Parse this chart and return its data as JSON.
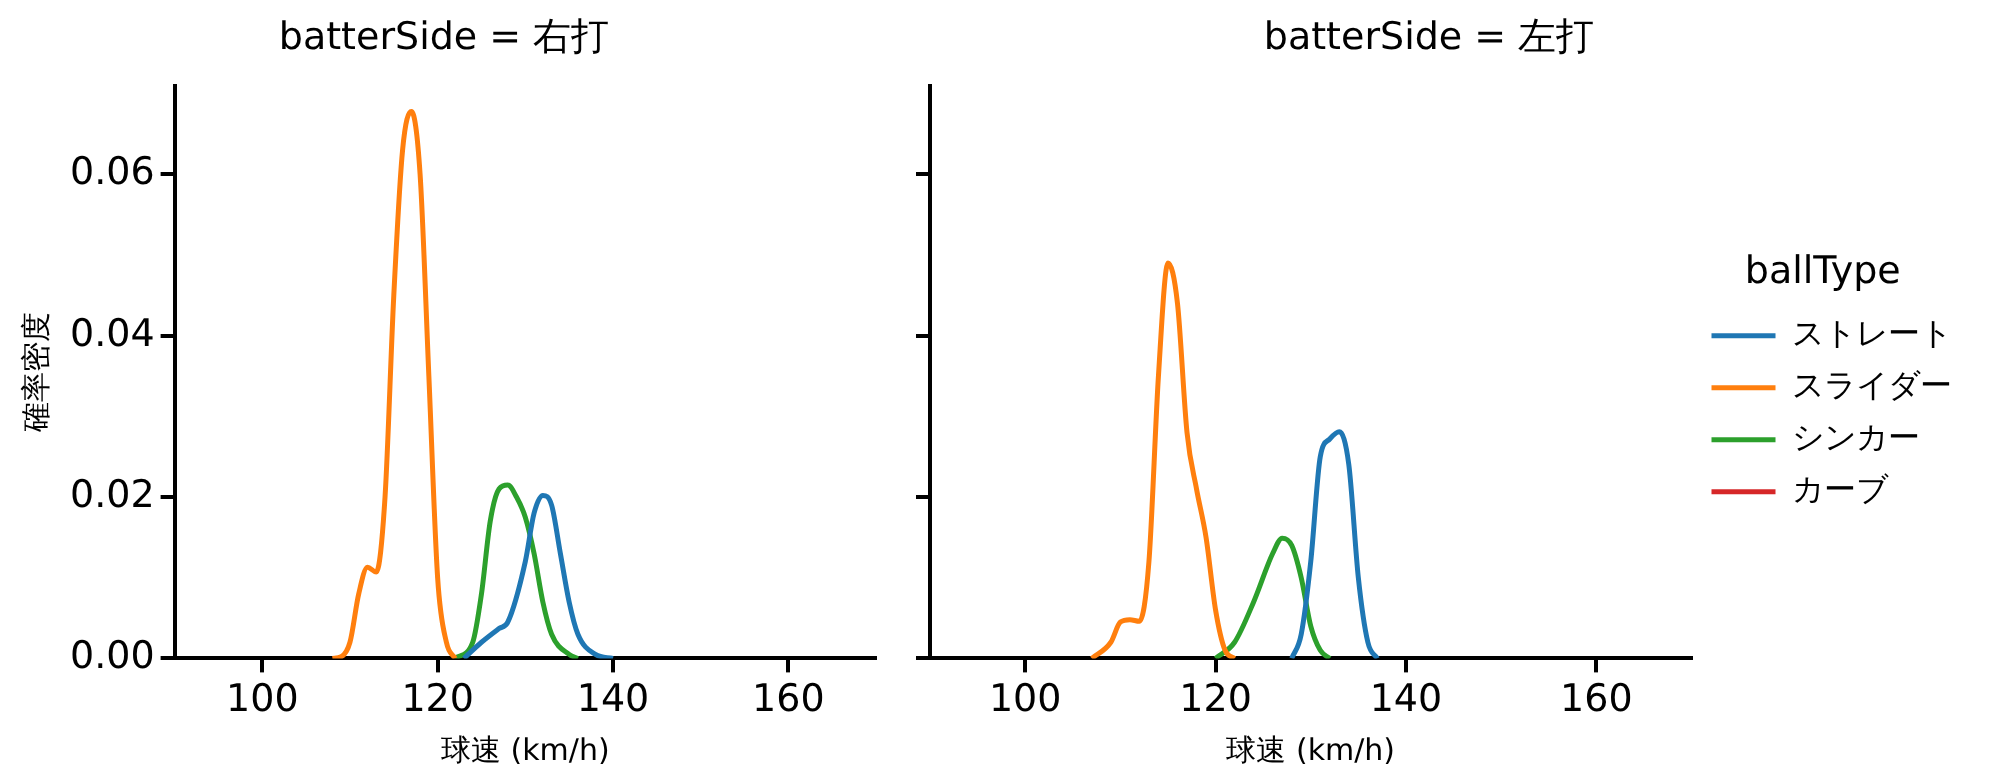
{
  "chart_data": [
    {
      "type": "line",
      "title": "batterSide = 右打",
      "xlabel": "球速 (km/h)",
      "ylabel": "確率密度",
      "xlim": [
        90,
        170
      ],
      "xticks": [
        100,
        120,
        140,
        160
      ],
      "ylim": [
        0,
        0.071
      ],
      "yticks": [
        {
          "value": 0,
          "label": "0.00"
        },
        {
          "value": 0.02,
          "label": "0.02"
        },
        {
          "value": 0.04,
          "label": "0.04"
        },
        {
          "value": 0.06,
          "label": "0.06"
        }
      ],
      "grid": false,
      "legend": false,
      "marker": "none",
      "series": [
        {
          "color": "#1f77b4",
          "x": [
            123,
            125,
            127,
            128,
            130,
            131,
            132,
            133,
            134,
            135,
            136,
            138,
            140
          ],
          "values": [
            0,
            0.002,
            0.0037,
            0.0045,
            0.012,
            0.018,
            0.0202,
            0.019,
            0.013,
            0.007,
            0.003,
            0.0005,
            0
          ]
        },
        {
          "color": "#ff7f0e",
          "x": [
            108,
            109,
            110,
            111,
            112,
            113,
            114,
            115,
            116,
            117,
            118,
            119,
            120,
            121,
            122
          ],
          "values": [
            0,
            0.0002,
            0.002,
            0.008,
            0.0113,
            0.0107,
            0.02,
            0.045,
            0.063,
            0.0678,
            0.06,
            0.035,
            0.01,
            0.002,
            0
          ]
        },
        {
          "color": "#2ca02c",
          "x": [
            122,
            124,
            125,
            126,
            127,
            128,
            129,
            130,
            131,
            132,
            133,
            135,
            136
          ],
          "values": [
            0,
            0.002,
            0.008,
            0.017,
            0.021,
            0.0215,
            0.02,
            0.0175,
            0.013,
            0.007,
            0.003,
            0.0005,
            0
          ]
        }
      ]
    },
    {
      "type": "line",
      "title": "batterSide = 左打",
      "xlabel": "球速 (km/h)",
      "xlim": [
        90,
        170
      ],
      "xticks": [
        100,
        120,
        140,
        160
      ],
      "ylim": [
        0,
        0.071
      ],
      "yticks": [
        {
          "value": 0,
          "label": null
        },
        {
          "value": 0.02,
          "label": null
        },
        {
          "value": 0.04,
          "label": null
        },
        {
          "value": 0.06,
          "label": null
        }
      ],
      "tick_labels": "x",
      "grid": false,
      "legend": "right",
      "legend_title": "ballType",
      "marker": "none",
      "series": [
        {
          "name": "ストレート",
          "color": "#1f77b4",
          "x": [
            128,
            129,
            130,
            131,
            132,
            133,
            134,
            135,
            136,
            137
          ],
          "values": [
            0,
            0.003,
            0.012,
            0.025,
            0.0272,
            0.0281,
            0.024,
            0.01,
            0.002,
            0
          ]
        },
        {
          "name": "スライダー",
          "color": "#ff7f0e",
          "x": [
            107,
            109,
            110,
            111,
            112,
            113,
            114,
            115,
            116,
            117,
            118,
            119,
            120,
            121,
            122
          ],
          "values": [
            0,
            0.002,
            0.0045,
            0.0048,
            0.0046,
            0.012,
            0.035,
            0.049,
            0.044,
            0.028,
            0.021,
            0.015,
            0.006,
            0.001,
            0
          ]
        },
        {
          "name": "シンカー",
          "color": "#2ca02c",
          "x": [
            120,
            122,
            124,
            126,
            127,
            128,
            129,
            130,
            131,
            132
          ],
          "values": [
            0,
            0.002,
            0.007,
            0.013,
            0.0149,
            0.014,
            0.01,
            0.004,
            0.001,
            0
          ]
        },
        {
          "name": "カーブ",
          "color": "#d62728"
        }
      ]
    }
  ]
}
